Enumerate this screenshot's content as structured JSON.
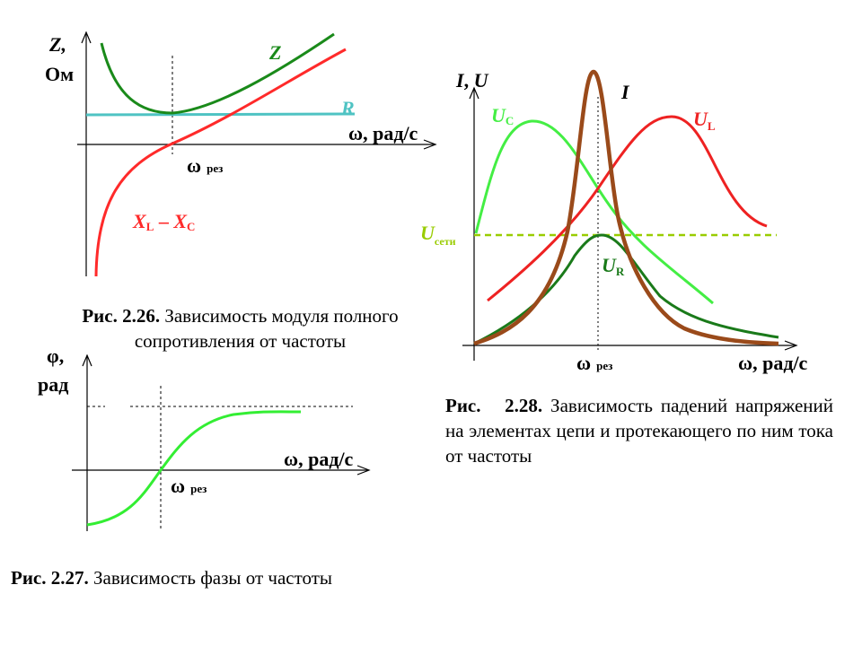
{
  "colors": {
    "axis": "#000000",
    "z_curve": "#1a8a1a",
    "r_line": "#4fc3c3",
    "xlxc_curve": "#ff2a2a",
    "phi_curve": "#33ee33",
    "uc_curve": "#44ee44",
    "ul_curve": "#ee2222",
    "ur_curve": "#1a7a1a",
    "i_curve": "#9a4a1a",
    "u_net_line": "#99cc00"
  },
  "fig26": {
    "y_axis_label_1": "Z,",
    "y_axis_label_2": "Ом",
    "x_axis_label": "ω, рад/с",
    "omega": "ω",
    "omega_sub": "рез",
    "z_label": "Z",
    "r_label": "R",
    "xl": "X",
    "xl_sub": "L",
    "dash": " – ",
    "xc": "X",
    "xc_sub": "C",
    "caption_bold": "Рис. 2.26.",
    "caption_text": " Зависимость модуля полного сопротивления от частоты"
  },
  "fig27": {
    "y_axis_label_1": "φ,",
    "y_axis_label_2": "рад",
    "x_axis_label": "ω, рад/с",
    "omega": "ω",
    "omega_sub": "рез",
    "caption_bold": "Рис. 2.27.",
    "caption_text": " Зависимость фазы от частоты"
  },
  "fig28": {
    "y_axis_label_i": "I",
    "y_axis_label_sep": ", ",
    "y_axis_label_u": "U",
    "x_axis_label": "ω, рад/с",
    "omega": "ω",
    "omega_sub": "рез",
    "i_label": "I",
    "uc": "U",
    "uc_sub": "C",
    "ul": "U",
    "ul_sub": "L",
    "ur": "U",
    "ur_sub": "R",
    "unet": "U",
    "unet_sub": "сети",
    "caption_bold": "Рис.   2.28.",
    "caption_text": " Зависимость падений напряжений  на элементах цепи и протекающего по ним тока от частоты"
  }
}
